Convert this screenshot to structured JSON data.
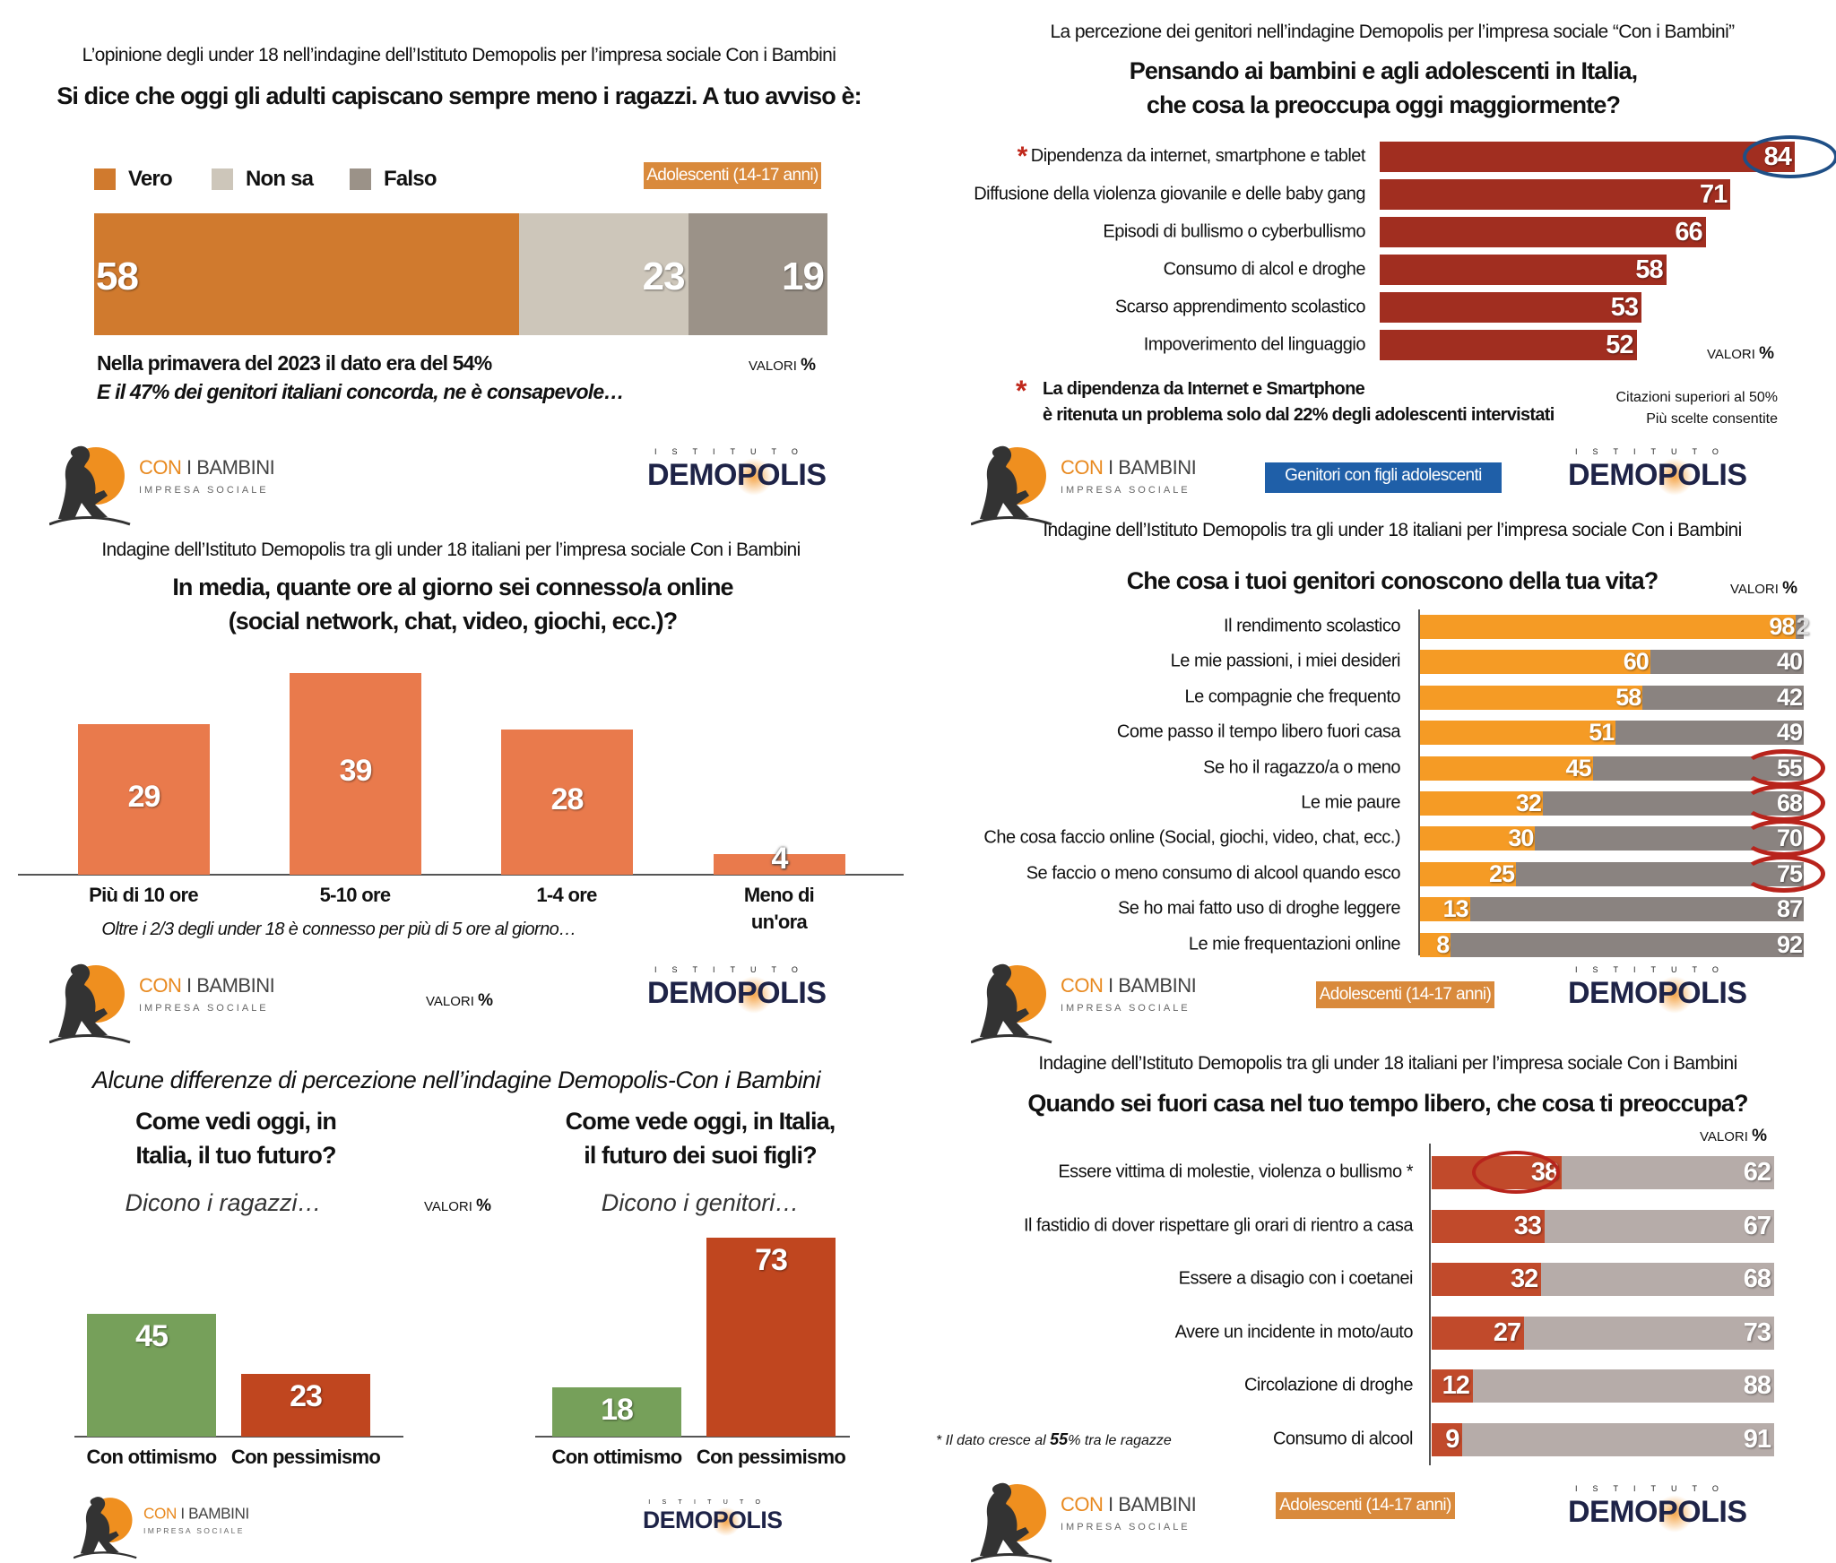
{
  "panels": {
    "p1": {
      "subtitle": "L’opinione degli under 18 nell’indagine dell’Istituto Demopolis per l’impresa sociale Con i Bambini",
      "title": "Si dice che oggi gli adulti capiscano sempre meno i ragazzi. A tuo avviso è:",
      "badge": "Adolescenti (14-17 anni)",
      "note": "Nella primavera del 2023 il dato era del 54%",
      "note_italic": "E il 47% dei genitori italiani concorda, ne è consapevole…",
      "valori": "VALORI",
      "pct": "%"
    },
    "p2": {
      "subtitle": "La percezione dei genitori nell’indagine Demopolis per l’impresa sociale “Con i Bambini”",
      "title_line1": "Pensando ai bambini e agli adolescenti in Italia,",
      "title_line2": "che cosa la preoccupa oggi maggiormente?",
      "asterisk": "*",
      "footnote_line1": "La dipendenza da Internet e Smartphone",
      "footnote_line2": "è ritenuta un problema solo dal 22% degli adolescenti intervistati",
      "citazioni": "Citazioni superiori al 50%",
      "scelte": "Più scelte consentite",
      "badge": "Genitori con figli adolescenti",
      "valori": "VALORI",
      "pct": "%"
    },
    "p3": {
      "subtitle": "Indagine dell’Istituto Demopolis tra gli under 18 italiani per l’impresa sociale Con i Bambini",
      "title_line1": "In media, quante ore al giorno sei connesso/a online",
      "title_line2": "(social network, chat, video, giochi, ecc.)?",
      "note_italic": "Oltre i 2/3 degli under 18 è connesso per più di 5 ore al giorno…",
      "valori": "VALORI",
      "pct": "%"
    },
    "p4": {
      "subtitle": "Indagine dell’Istituto Demopolis tra gli under 18 italiani per l’impresa sociale Con i Bambini",
      "title": "Che cosa i tuoi genitori conoscono della tua vita?",
      "badge": "Adolescenti (14-17 anni)",
      "valori": "VALORI",
      "pct": "%"
    },
    "p5": {
      "heading": "Alcune differenze di percezione nell’indagine Demopolis-Con i Bambini",
      "q1_line1": "Come vedi oggi, in",
      "q1_line2": "Italia, il tuo futuro?",
      "q2_line1": "Come vede oggi, in Italia,",
      "q2_line2": "il futuro dei suoi figli?",
      "dicono1": "Dicono i ragazzi…",
      "dicono2": "Dicono i genitori…",
      "valori": "VALORI",
      "pct": "%"
    },
    "p6": {
      "subtitle": "Indagine dell’Istituto Demopolis tra gli under 18 italiani per l’impresa sociale Con i Bambini",
      "title": "Quando sei fuori casa nel tuo tempo libero, che cosa ti preoccupa?",
      "footnote_pre": "* Il dato cresce al ",
      "footnote_bold": "55",
      "footnote_post": "% tra le ragazze",
      "badge": "Adolescenti (14-17 anni)",
      "valori": "VALORI",
      "pct": "%"
    }
  },
  "logos": {
    "cib_con": "CON",
    "cib_bambini": "I BAMBINI",
    "cib_sub": "IMPRESA SOCIALE",
    "dm_top": "ISTITUTO",
    "dm_name": "DEMOPOLIS"
  },
  "colors": {
    "vero": "#d07a2e",
    "non_sa": "#cdc6ba",
    "falso": "#9b9288",
    "worry_bar": "#a12e20",
    "known": "#f59b25",
    "unknown": "#8a8380",
    "hours_bar": "#e97a4c",
    "optimism": "#76a05a",
    "pessimism": "#c0461f",
    "p6_red": "#c14a2b",
    "p6_gray": "#b6aca9",
    "badge_orange": "#d98a3c",
    "badge_blue": "#1f5fa8",
    "highlight_blue": "#1f4f86",
    "highlight_red": "#b8241c"
  },
  "chart_data": [
    {
      "type": "bar",
      "orientation": "horizontal-stacked",
      "title": "Si dice che oggi gli adulti capiscano sempre meno i ragazzi. A tuo avviso è:",
      "categories": [
        "Vero",
        "Non sa",
        "Falso"
      ],
      "values": [
        58,
        23,
        19
      ],
      "legend": "top-left",
      "unit": "%"
    },
    {
      "type": "bar",
      "orientation": "horizontal",
      "title": "Pensando ai bambini e agli adolescenti in Italia, che cosa la preoccupa oggi maggiormente?",
      "categories": [
        "Dipendenza da internet, smartphone e tablet",
        "Diffusione della violenza giovanile e delle baby gang",
        "Episodi di bullismo o cyberbullismo",
        "Consumo di alcol e droghe",
        "Scarso apprendimento scolastico",
        "Impoverimento del linguaggio"
      ],
      "values": [
        84,
        71,
        66,
        58,
        53,
        52
      ],
      "highlighted": [
        0
      ],
      "starred": [
        0
      ],
      "unit": "%"
    },
    {
      "type": "bar",
      "orientation": "vertical",
      "title": "In media, quante ore al giorno sei connesso/a online (social network, chat, video, giochi, ecc.)?",
      "categories": [
        "Più di 10 ore",
        "5-10 ore",
        "1-4 ore",
        "Meno di un'ora"
      ],
      "values": [
        29,
        39,
        28,
        4
      ],
      "unit": "%"
    },
    {
      "type": "bar",
      "orientation": "horizontal-stacked",
      "title": "Che cosa i tuoi genitori conoscono della tua vita?",
      "categories": [
        "Il rendimento scolastico",
        "Le mie passioni, i miei desideri",
        "Le compagnie che frequento",
        "Come passo il tempo libero fuori casa",
        "Se ho il ragazzo/a o meno",
        "Le mie paure",
        "Che cosa faccio online (Social, giochi, video, chat, ecc.)",
        "Se faccio o meno consumo di alcool quando esco",
        "Se ho mai fatto uso di droghe leggere",
        "Le mie frequentazioni online"
      ],
      "series": [
        {
          "values": [
            98,
            60,
            58,
            51,
            45,
            32,
            30,
            25,
            13,
            8
          ]
        },
        {
          "values": [
            2,
            40,
            42,
            49,
            55,
            68,
            70,
            75,
            87,
            92
          ]
        }
      ],
      "highlighted": [
        4,
        5,
        6,
        7
      ],
      "unit": "%"
    },
    {
      "type": "bar",
      "orientation": "vertical-grouped",
      "groups": [
        {
          "question": "Come vedi oggi, in Italia, il tuo futuro?",
          "respondents": "Dicono i ragazzi…",
          "values": [
            45,
            23
          ]
        },
        {
          "question": "Come vede oggi, in Italia, il futuro dei suoi figli?",
          "respondents": "Dicono i genitori…",
          "values": [
            18,
            73
          ]
        }
      ],
      "categories": [
        "Con ottimismo",
        "Con pessimismo"
      ],
      "unit": "%"
    },
    {
      "type": "bar",
      "orientation": "horizontal-stacked",
      "title": "Quando sei fuori casa nel tuo tempo libero, che cosa ti preoccupa?",
      "categories": [
        "Essere vittima di molestie, violenza o bullismo *",
        "Il fastidio di dover rispettare gli orari di rientro a casa",
        "Essere a disagio con i coetanei",
        "Avere un incidente in moto/auto",
        "Circolazione di droghe",
        "Consumo di alcool"
      ],
      "series": [
        {
          "values": [
            38,
            33,
            32,
            27,
            12,
            9
          ]
        },
        {
          "values": [
            62,
            67,
            68,
            73,
            88,
            91
          ]
        }
      ],
      "highlighted": [
        0
      ],
      "unit": "%"
    }
  ]
}
